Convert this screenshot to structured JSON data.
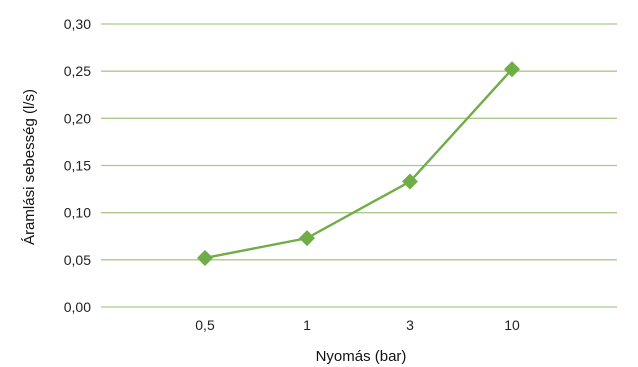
{
  "chart_data": {
    "type": "line",
    "categories": [
      "0,5",
      "1",
      "3",
      "10"
    ],
    "series": [
      {
        "values": [
          0.052,
          0.073,
          0.133,
          0.252
        ]
      }
    ],
    "ylim": [
      0,
      0.3
    ],
    "yticks": [
      "0,00",
      "0,05",
      "0,10",
      "0,15",
      "0,20",
      "0,25",
      "0,30"
    ],
    "xlabel": "Nyomás (bar)",
    "ylabel": "Áramlási sebesség (l/s)",
    "grid": true,
    "marker": "diamond",
    "colors": {
      "series": "#70ad47",
      "grid": "#a8c98a"
    }
  }
}
